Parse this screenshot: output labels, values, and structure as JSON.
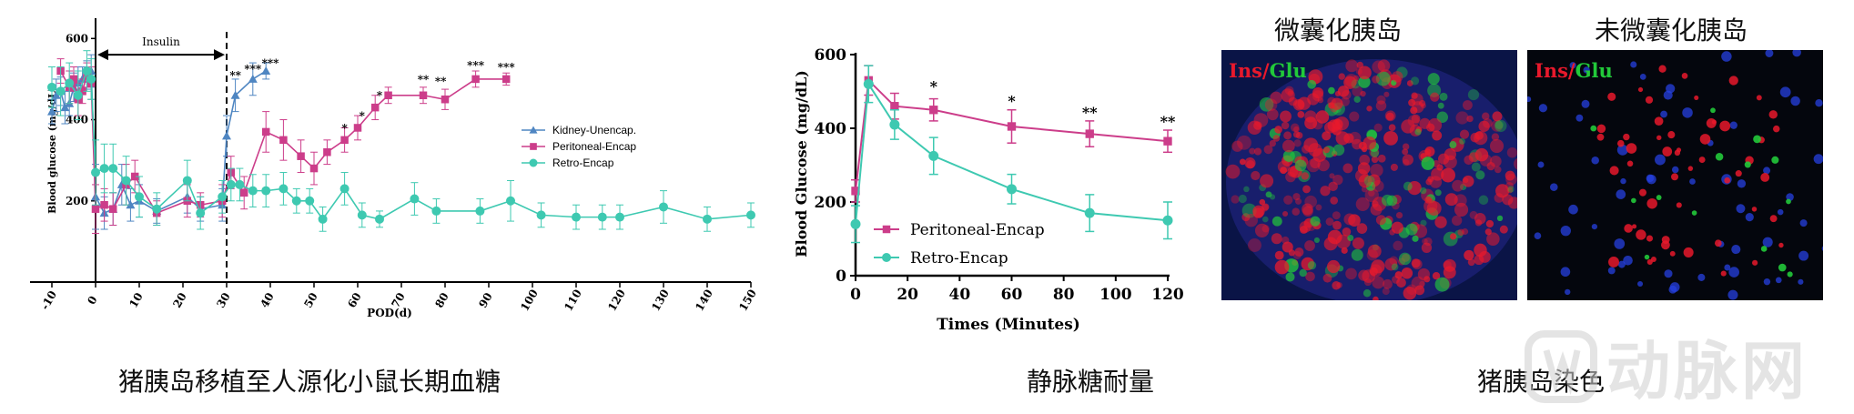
{
  "chart_data": [
    {
      "type": "line",
      "title": "猪胰岛移植至人源化小鼠长期血糖",
      "xlabel": "POD(d)",
      "ylabel": "Blood glucose (mg/dL)",
      "xlim": [
        -15,
        150
      ],
      "ylim": [
        0,
        650
      ],
      "xticks": [
        -10,
        0,
        10,
        20,
        30,
        40,
        50,
        60,
        70,
        80,
        90,
        100,
        110,
        120,
        130,
        140,
        150
      ],
      "yticks": [
        200,
        400,
        600
      ],
      "annotation": {
        "label": "Insulin",
        "from": 0,
        "to": 30
      },
      "dashed_line_x": 30,
      "legend_position": "right",
      "series": [
        {
          "name": "Kidney-Unencap.",
          "color": "#4f86c2",
          "marker": "triangle",
          "x": [
            -10,
            -9,
            -8,
            -7,
            -6,
            -5,
            -4,
            -3,
            -2,
            -1,
            0,
            2,
            4,
            6,
            8,
            10,
            14,
            21,
            24,
            29,
            30,
            32,
            36,
            39
          ],
          "y": [
            420,
            460,
            470,
            430,
            440,
            480,
            490,
            500,
            510,
            520,
            210,
            170,
            180,
            240,
            190,
            200,
            175,
            210,
            180,
            190,
            360,
            460,
            500,
            520
          ],
          "err": [
            30,
            40,
            35,
            40,
            30,
            35,
            40,
            30,
            35,
            40,
            80,
            40,
            40,
            50,
            40,
            40,
            30,
            40,
            30,
            40,
            50,
            40,
            40,
            20
          ]
        },
        {
          "name": "Peritoneal-Encap",
          "color": "#cc3d8a",
          "marker": "square",
          "x": [
            -8,
            -6,
            -5,
            -4,
            -3,
            -2,
            -1,
            0,
            2,
            4,
            7,
            9,
            14,
            21,
            24,
            29,
            31,
            34,
            39,
            43,
            47,
            50,
            53,
            57,
            60,
            64,
            67,
            75,
            80,
            87,
            94
          ],
          "y": [
            520,
            480,
            500,
            450,
            470,
            510,
            490,
            180,
            190,
            180,
            240,
            260,
            170,
            200,
            190,
            200,
            270,
            220,
            370,
            350,
            310,
            280,
            320,
            350,
            380,
            430,
            460,
            460,
            450,
            500,
            500
          ],
          "err": [
            30,
            40,
            30,
            40,
            30,
            30,
            40,
            60,
            40,
            40,
            50,
            40,
            30,
            40,
            30,
            40,
            40,
            40,
            50,
            50,
            40,
            40,
            30,
            30,
            30,
            30,
            20,
            20,
            25,
            20,
            15
          ]
        },
        {
          "name": "Retro-Encap",
          "color": "#3ec9b1",
          "marker": "circle",
          "x": [
            -10,
            -8,
            -6,
            -4,
            -2,
            -1,
            0,
            2,
            4,
            7,
            10,
            14,
            21,
            24,
            29,
            31,
            33,
            36,
            39,
            43,
            46,
            49,
            52,
            57,
            61,
            65,
            73,
            78,
            88,
            95,
            102,
            110,
            116,
            120,
            130,
            140,
            150
          ],
          "y": [
            480,
            470,
            490,
            460,
            520,
            500,
            270,
            280,
            280,
            250,
            210,
            180,
            250,
            170,
            210,
            240,
            240,
            225,
            225,
            230,
            200,
            200,
            155,
            230,
            165,
            155,
            205,
            175,
            175,
            200,
            165,
            160,
            160,
            160,
            185,
            155,
            165
          ],
          "err": [
            50,
            60,
            50,
            60,
            50,
            50,
            80,
            60,
            60,
            60,
            50,
            40,
            50,
            40,
            40,
            40,
            40,
            40,
            40,
            40,
            30,
            30,
            30,
            40,
            30,
            20,
            40,
            30,
            30,
            50,
            30,
            30,
            30,
            30,
            40,
            30,
            30
          ]
        }
      ],
      "significance": [
        {
          "x": 32,
          "y": 500,
          "label": "**"
        },
        {
          "x": 36,
          "y": 515,
          "label": "***"
        },
        {
          "x": 40,
          "y": 530,
          "label": "***"
        },
        {
          "x": 57,
          "y": 370,
          "label": "*"
        },
        {
          "x": 61,
          "y": 400,
          "label": "*"
        },
        {
          "x": 65,
          "y": 450,
          "label": "*"
        },
        {
          "x": 75,
          "y": 490,
          "label": "**"
        },
        {
          "x": 79,
          "y": 485,
          "label": "**"
        },
        {
          "x": 87,
          "y": 525,
          "label": "***"
        },
        {
          "x": 94,
          "y": 520,
          "label": "***"
        }
      ]
    },
    {
      "type": "line",
      "title": "静脉糖耐量",
      "xlabel": "Times (Minutes)",
      "ylabel": "Blood Glucose (mg/dL)",
      "xlim": [
        0,
        120
      ],
      "ylim": [
        0,
        600
      ],
      "xticks": [
        0,
        20,
        40,
        60,
        80,
        100,
        120
      ],
      "yticks": [
        0,
        200,
        400,
        600
      ],
      "legend_position": "bottom-left",
      "series": [
        {
          "name": "Peritoneal-Encap",
          "color": "#cc3d8a",
          "marker": "square",
          "x": [
            0,
            5,
            15,
            30,
            60,
            90,
            120
          ],
          "y": [
            230,
            530,
            460,
            450,
            405,
            385,
            365
          ],
          "err": [
            30,
            40,
            35,
            30,
            45,
            35,
            30
          ]
        },
        {
          "name": "Retro-Encap",
          "color": "#3ec9b1",
          "marker": "circle",
          "x": [
            0,
            5,
            15,
            30,
            60,
            90,
            120
          ],
          "y": [
            140,
            520,
            410,
            325,
            235,
            170,
            150
          ],
          "err": [
            50,
            50,
            40,
            50,
            40,
            50,
            50
          ]
        }
      ],
      "significance": [
        {
          "x": 30,
          "y": 500,
          "label": "*"
        },
        {
          "x": 60,
          "y": 460,
          "label": "*"
        },
        {
          "x": 90,
          "y": 430,
          "label": "**"
        },
        {
          "x": 120,
          "y": 405,
          "label": "**"
        }
      ]
    }
  ],
  "figure": {
    "caption_left": "猪胰岛移植至人源化小鼠长期血糖",
    "caption_middle": "静脉糖耐量",
    "caption_right": "猪胰岛染色",
    "photo_left_title": "微囊化胰岛",
    "photo_right_title": "未微囊化胰岛",
    "stain_label_ins": "Ins",
    "stain_label_sep": "/",
    "stain_label_glu": "Glu",
    "stain_ins_color": "#e8192c",
    "stain_glu_color": "#22c93a",
    "watermark_text": "动脉网"
  }
}
